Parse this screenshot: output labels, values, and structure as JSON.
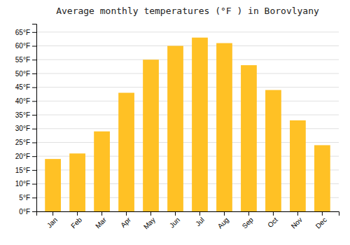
{
  "chart_data": {
    "type": "bar",
    "title": "Average monthly temperatures (°F ) in Borovlyany",
    "categories": [
      "Jan",
      "Feb",
      "Mar",
      "Apr",
      "May",
      "Jun",
      "Jul",
      "Aug",
      "Sep",
      "Oct",
      "Nov",
      "Dec"
    ],
    "values": [
      19,
      21,
      29,
      43,
      55,
      60,
      63,
      61,
      53,
      44,
      33,
      24
    ],
    "color": "#FFC125",
    "ylim": [
      0,
      68
    ],
    "yticks": [
      {
        "value": 0,
        "label": "0°F"
      },
      {
        "value": 5,
        "label": "5°F"
      },
      {
        "value": 10,
        "label": "10°F"
      },
      {
        "value": 15,
        "label": "15°F"
      },
      {
        "value": 20,
        "label": "20°F"
      },
      {
        "value": 25,
        "label": "25°F"
      },
      {
        "value": 30,
        "label": "30°F"
      },
      {
        "value": 35,
        "label": "35°F"
      },
      {
        "value": 40,
        "label": "40°F"
      },
      {
        "value": 45,
        "label": "45°F"
      },
      {
        "value": 50,
        "label": "50°F"
      },
      {
        "value": 55,
        "label": "55°F"
      },
      {
        "value": 60,
        "label": "60°F"
      },
      {
        "value": 65,
        "label": "65°F"
      }
    ],
    "grid": true
  }
}
